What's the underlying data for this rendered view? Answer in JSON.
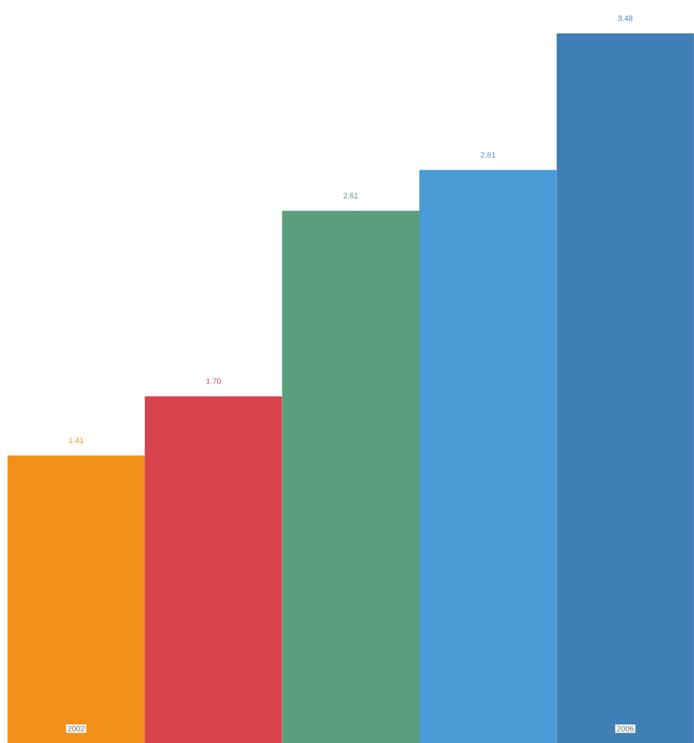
{
  "chart_data": {
    "type": "bar",
    "categories": [
      "2002",
      null,
      null,
      null,
      "2006"
    ],
    "values": [
      1.41,
      1.7,
      2.61,
      2.81,
      3.48
    ],
    "colors": [
      "#f39019",
      "#d9434d",
      "#5a9e7b",
      "#4a9ad6",
      "#3f7fb5"
    ],
    "value_labels": [
      "1.41",
      "1.70",
      "2.61",
      "2.81",
      "3.48"
    ]
  }
}
